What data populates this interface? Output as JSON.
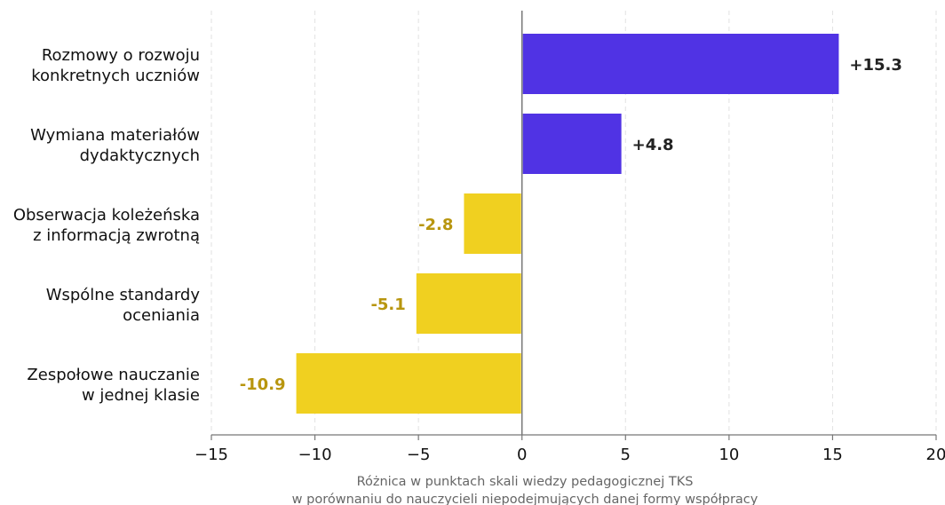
{
  "chart_data": {
    "type": "bar",
    "orientation": "horizontal",
    "categories": [
      [
        "Rozmowy o rozwoju",
        "konkretnych uczniów"
      ],
      [
        "Wymiana materiałów",
        "dydaktycznych"
      ],
      [
        "Obserwacja koleżeńska",
        "z informacją zwrotną"
      ],
      [
        "Wspólne standardy",
        "oceniania"
      ],
      [
        "Zespołowe nauczanie",
        "w jednej klasie"
      ]
    ],
    "values": [
      15.3,
      4.8,
      -2.8,
      -5.1,
      -10.9
    ],
    "value_labels": [
      "+15.3",
      "+4.8",
      "-2.8",
      "-5.1",
      "-10.9"
    ],
    "xlim": [
      -15,
      20
    ],
    "xticks": [
      -15,
      -10,
      -5,
      0,
      5,
      10,
      15,
      20
    ],
    "xtick_labels": [
      "−15",
      "−10",
      "−5",
      "0",
      "5",
      "10",
      "15",
      "20"
    ],
    "xlabel": [
      "Różnica w punktach skali wiedzy pedagogicznej TKS",
      "w porównaniu do nauczycieli niepodejmujących danej formy współpracy"
    ],
    "grid": "vertical dashed",
    "colors": {
      "positive": "#5033e4",
      "negative": "#f0d020",
      "positive_label": "#222222",
      "negative_label": "#b8960f",
      "axis": "#777777",
      "grid": "#e2e2e2",
      "xlabel": "#666666"
    }
  }
}
